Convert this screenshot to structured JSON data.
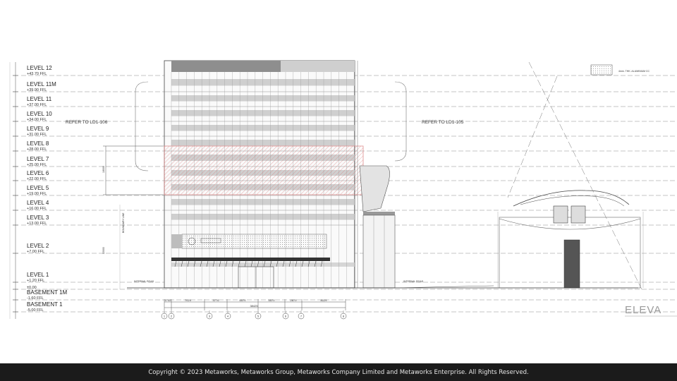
{
  "levels": [
    {
      "name": "LEVEL 12",
      "ffl": "+43.70 FFL"
    },
    {
      "name": "LEVEL 11M",
      "ffl": "+39.90 FFL"
    },
    {
      "name": "LEVEL 11",
      "ffl": "+37.00 FFL"
    },
    {
      "name": "LEVEL 10",
      "ffl": "+34.00 FFL"
    },
    {
      "name": "LEVEL 9",
      "ffl": "+31.00 FFL"
    },
    {
      "name": "LEVEL 8",
      "ffl": "+28.00 FFL"
    },
    {
      "name": "LEVEL 7",
      "ffl": "+25.00 FFL"
    },
    {
      "name": "LEVEL 6",
      "ffl": "+22.00 FFL"
    },
    {
      "name": "LEVEL 5",
      "ffl": "+19.00 FFL"
    },
    {
      "name": "LEVEL 4",
      "ffl": "+16.00 FFL"
    },
    {
      "name": "LEVEL 3",
      "ffl": "+13.00 FFL"
    },
    {
      "name": "LEVEL 2",
      "ffl": "+7.00 FFL"
    },
    {
      "name": "LEVEL 1",
      "ffl": "+1.20 FFL"
    },
    {
      "name": "",
      "ffl": "±0.00"
    },
    {
      "name": "BASEMENT 1M",
      "ffl": "-1.60 FFL"
    },
    {
      "name": "BASEMENT 1",
      "ffl": "-5.00 FFL"
    }
  ],
  "notes": {
    "refer_left": "REFER TO LD1-106",
    "refer_right": "REFER TO LD1-105",
    "legend_text": "4mm. THK. ALUMINIUM CC",
    "elevation_title": "ELEVA",
    "internal_road_left": "INTERNAL ROAD",
    "internal_road_right": "INTERNAL ROAD",
    "boundary_line": "BOUNDARY LINE"
  },
  "dimensions": {
    "bays": [
      "1752",
      "7029",
      "3776",
      "6579",
      "5579",
      "2879",
      "8029"
    ],
    "overall": "38425",
    "vertical_span": "18000",
    "lower_span": "22000"
  },
  "grid_bubbles": [
    "1",
    "2",
    "3",
    "4",
    "5",
    "6",
    "7",
    "8"
  ],
  "colors": {
    "line": "#9a9a9a",
    "dark": "#333333",
    "highlight": "#d97a7a",
    "highlight_fill": "#f6d2d2",
    "panel": "#c8c8c8"
  },
  "footer": {
    "copyright": "Copyright © 2023 Metaworks, Metaworks Group, Metaworks Company Limited and Metaworks Enterprise. All Rights Reserved."
  }
}
